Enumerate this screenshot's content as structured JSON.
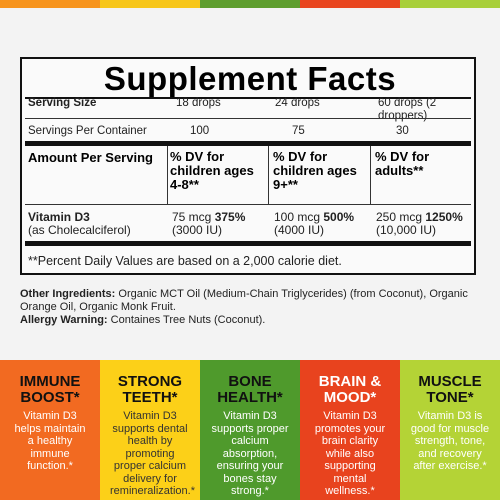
{
  "facts": {
    "title": "Supplement Facts",
    "serving_size": {
      "label": "Serving Size",
      "values": [
        "18 drops",
        "24 drops",
        "60 drops (2 droppers)"
      ]
    },
    "servings_per_container": {
      "label": "Servings Per Container",
      "values": [
        "100",
        "75",
        "30"
      ]
    },
    "amount_header": {
      "label": "Amount Per Serving",
      "columns": [
        "% DV for children ages 4-8**",
        "% DV for children ages 9+**",
        "% DV for adults**"
      ]
    },
    "nutrient": {
      "name": "Vitamin D3",
      "source": "(as Cholecalciferol)",
      "columns": [
        {
          "amount": "75 mcg",
          "dv": "375%",
          "iu": "(3000 IU)"
        },
        {
          "amount": "100 mcg",
          "dv": "500%",
          "iu": "(4000 IU)"
        },
        {
          "amount": "250 mcg",
          "dv": "1250%",
          "iu": "(10,000 IU)"
        }
      ]
    },
    "footnote": "**Percent Daily Values are based on a 2,000 calorie diet."
  },
  "other_ingredients": {
    "label": "Other Ingredients:",
    "text": "Organic MCT Oil (Medium-Chain Triglycerides) (from Coconut), Organic Orange Oil, Organic Monk Fruit."
  },
  "allergy_warning": {
    "label": "Allergy Warning:",
    "text": "Containes Tree Nuts (Coconut)."
  },
  "panels": [
    {
      "title": "IMMUNE BOOST*",
      "text": "Vitamin D3 helps maintain a healthy immune function.*"
    },
    {
      "title": "STRONG TEETH*",
      "text": "Vitamin D3 supports dental health by promoting proper calcium delivery for remineralization.*"
    },
    {
      "title": "BONE HEALTH*",
      "text": "Vitamin D3 supports proper calcium absorption, ensuring your bones stay strong.*"
    },
    {
      "title": "BRAIN & MOOD*",
      "text": "Vitamin D3 promotes your brain clarity while also supporting mental wellness.*"
    },
    {
      "title": "MUSCLE TONE*",
      "text": "Vitamin D3 is good for muscle strength, tone, and recovery after exercise.*"
    }
  ]
}
